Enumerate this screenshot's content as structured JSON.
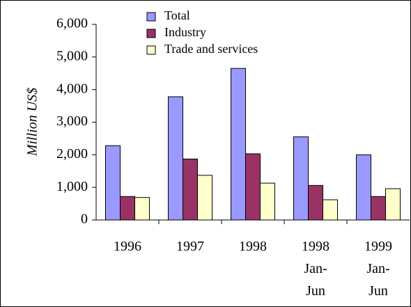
{
  "chart_data": {
    "type": "bar",
    "y_label": "Million US$",
    "categories": [
      "1996",
      "1997",
      "1998",
      "1998\nJan-\nJun",
      "1999\nJan-\nJun"
    ],
    "series": [
      {
        "name": "Total",
        "color": "#9999ff",
        "values": [
          2280,
          3780,
          4650,
          2550,
          2000
        ]
      },
      {
        "name": "Industry",
        "color": "#993366",
        "values": [
          720,
          1870,
          2030,
          1060,
          720
        ]
      },
      {
        "name": "Trade and services",
        "color": "#ffffcc",
        "values": [
          690,
          1370,
          1130,
          620,
          960
        ]
      }
    ],
    "ylim": [
      0,
      6000
    ],
    "yticks": [
      0,
      {
        "value": 1000,
        "label": "1,000"
      },
      {
        "value": 2000,
        "label": "2,000"
      },
      {
        "value": 3000,
        "label": "3,000"
      },
      {
        "value": 4000,
        "label": "4,000"
      },
      {
        "value": 5000,
        "label": "5,000"
      },
      {
        "value": 6000,
        "label": "6,000"
      }
    ],
    "grid": false,
    "legend": "top"
  }
}
